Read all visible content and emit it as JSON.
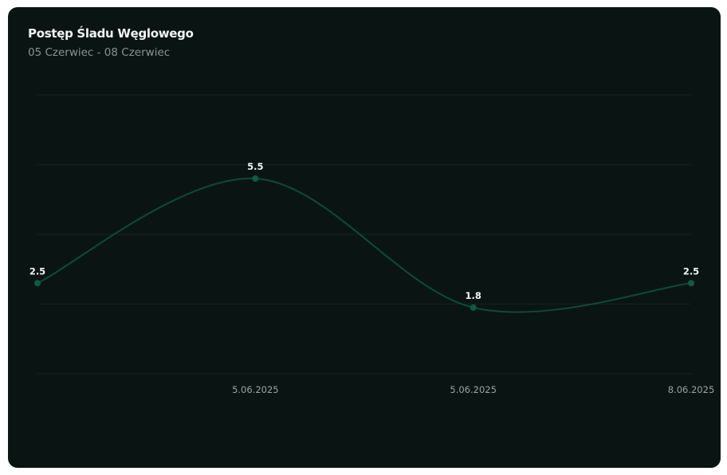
{
  "card": {
    "title": "Postęp Śladu Węglowego",
    "subtitle": "05 Czerwiec - 08 Czerwiec"
  },
  "colors": {
    "background": "#0a1513",
    "line": "#0e4a37",
    "point": "#0f5a42",
    "grid": "#14221f",
    "data_label": "#f2f4f3",
    "tick_label": "#9aa3a0"
  },
  "chart_data": {
    "type": "line",
    "categories": [
      "",
      "5.06.2025",
      "5.06.2025",
      "8.06.2025"
    ],
    "values": [
      2.5,
      5.5,
      1.8,
      2.5
    ],
    "title": "Postęp Śladu Węglowego",
    "subtitle": "05 Czerwiec - 08 Czerwiec",
    "xlabel": "",
    "ylabel": "",
    "ylim": [
      -0.1,
      7.9
    ],
    "grid": true,
    "smooth": true,
    "show_y_axis": false,
    "data_labels": true
  }
}
